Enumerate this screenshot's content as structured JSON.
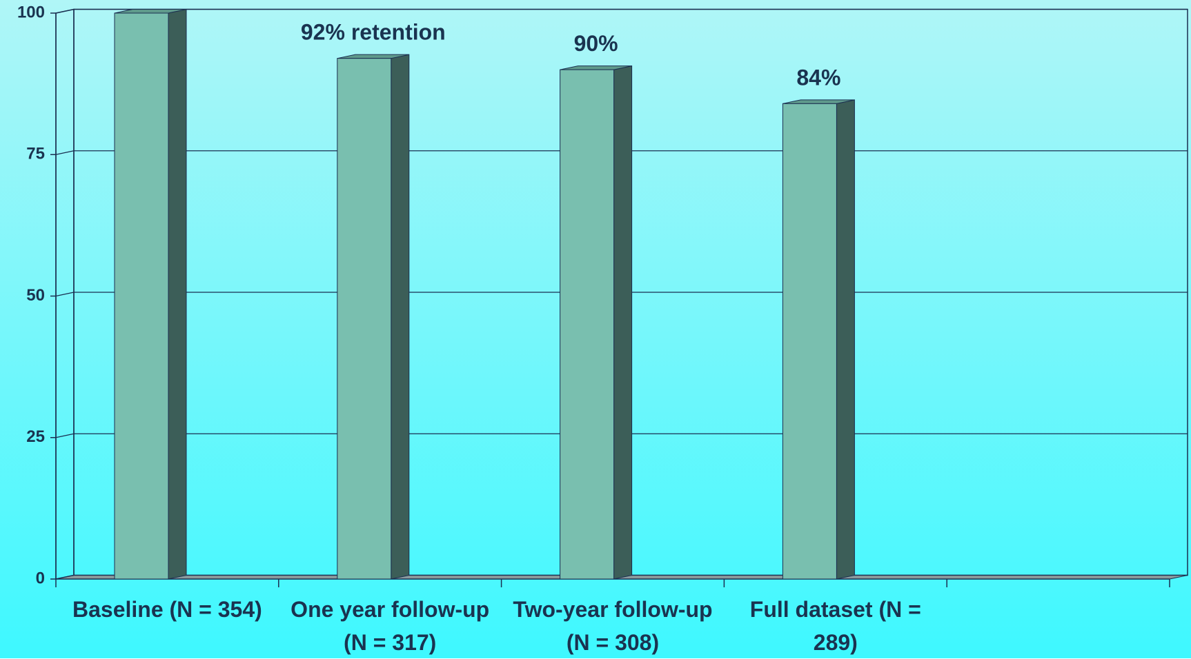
{
  "chart_data": {
    "type": "bar",
    "categories": [
      "Baseline (N = 354)",
      "One year follow-up (N = 317)",
      "Two-year follow-up (N = 308)",
      "Full dataset (N = 289)",
      null
    ],
    "values": [
      100,
      92,
      90,
      84,
      null
    ],
    "value_labels": [
      null,
      "92% retention",
      "90%",
      "84%",
      null
    ],
    "color": "#79bfaf",
    "ylim": [
      0,
      100
    ],
    "yticks": [
      0,
      25,
      50,
      75,
      100
    ],
    "grid": true
  }
}
